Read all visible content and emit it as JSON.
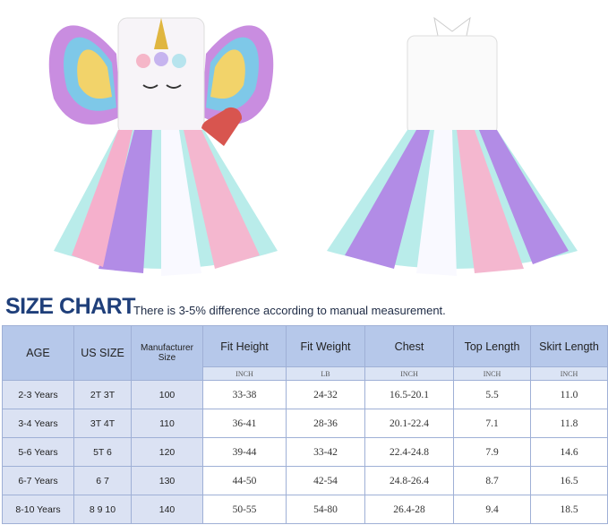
{
  "images": {
    "front": "unicorn tutu dress front with rainbow wings and heart bag",
    "back": "unicorn tutu dress back with white bow"
  },
  "heading": {
    "title": "SIZE CHART",
    "note": "There is 3-5% difference according to manual measurement."
  },
  "colors": {
    "title": "#1f3f7a",
    "header_bg": "#b6c8ea",
    "left_bg": "#dbe2f3"
  },
  "table": {
    "headers": [
      "AGE",
      "US SIZE",
      "Manufacturer Size",
      "Fit Height",
      "Fit Weight",
      "Chest",
      "Top Length",
      "Skirt Length"
    ],
    "units": [
      "INCH",
      "LB",
      "INCH",
      "INCH",
      "INCH"
    ],
    "rows": [
      [
        "2-3 Years",
        "2T 3T",
        "100",
        "33-38",
        "24-32",
        "16.5-20.1",
        "5.5",
        "11.0"
      ],
      [
        "3-4 Years",
        "3T 4T",
        "110",
        "36-41",
        "28-36",
        "20.1-22.4",
        "7.1",
        "11.8"
      ],
      [
        "5-6 Years",
        "5T 6",
        "120",
        "39-44",
        "33-42",
        "22.4-24.8",
        "7.9",
        "14.6"
      ],
      [
        "6-7 Years",
        "6 7",
        "130",
        "44-50",
        "42-54",
        "24.8-26.4",
        "8.7",
        "16.5"
      ],
      [
        "8-10 Years",
        "8 9 10",
        "140",
        "50-55",
        "54-80",
        "26.4-28",
        "9.4",
        "18.5"
      ]
    ]
  }
}
